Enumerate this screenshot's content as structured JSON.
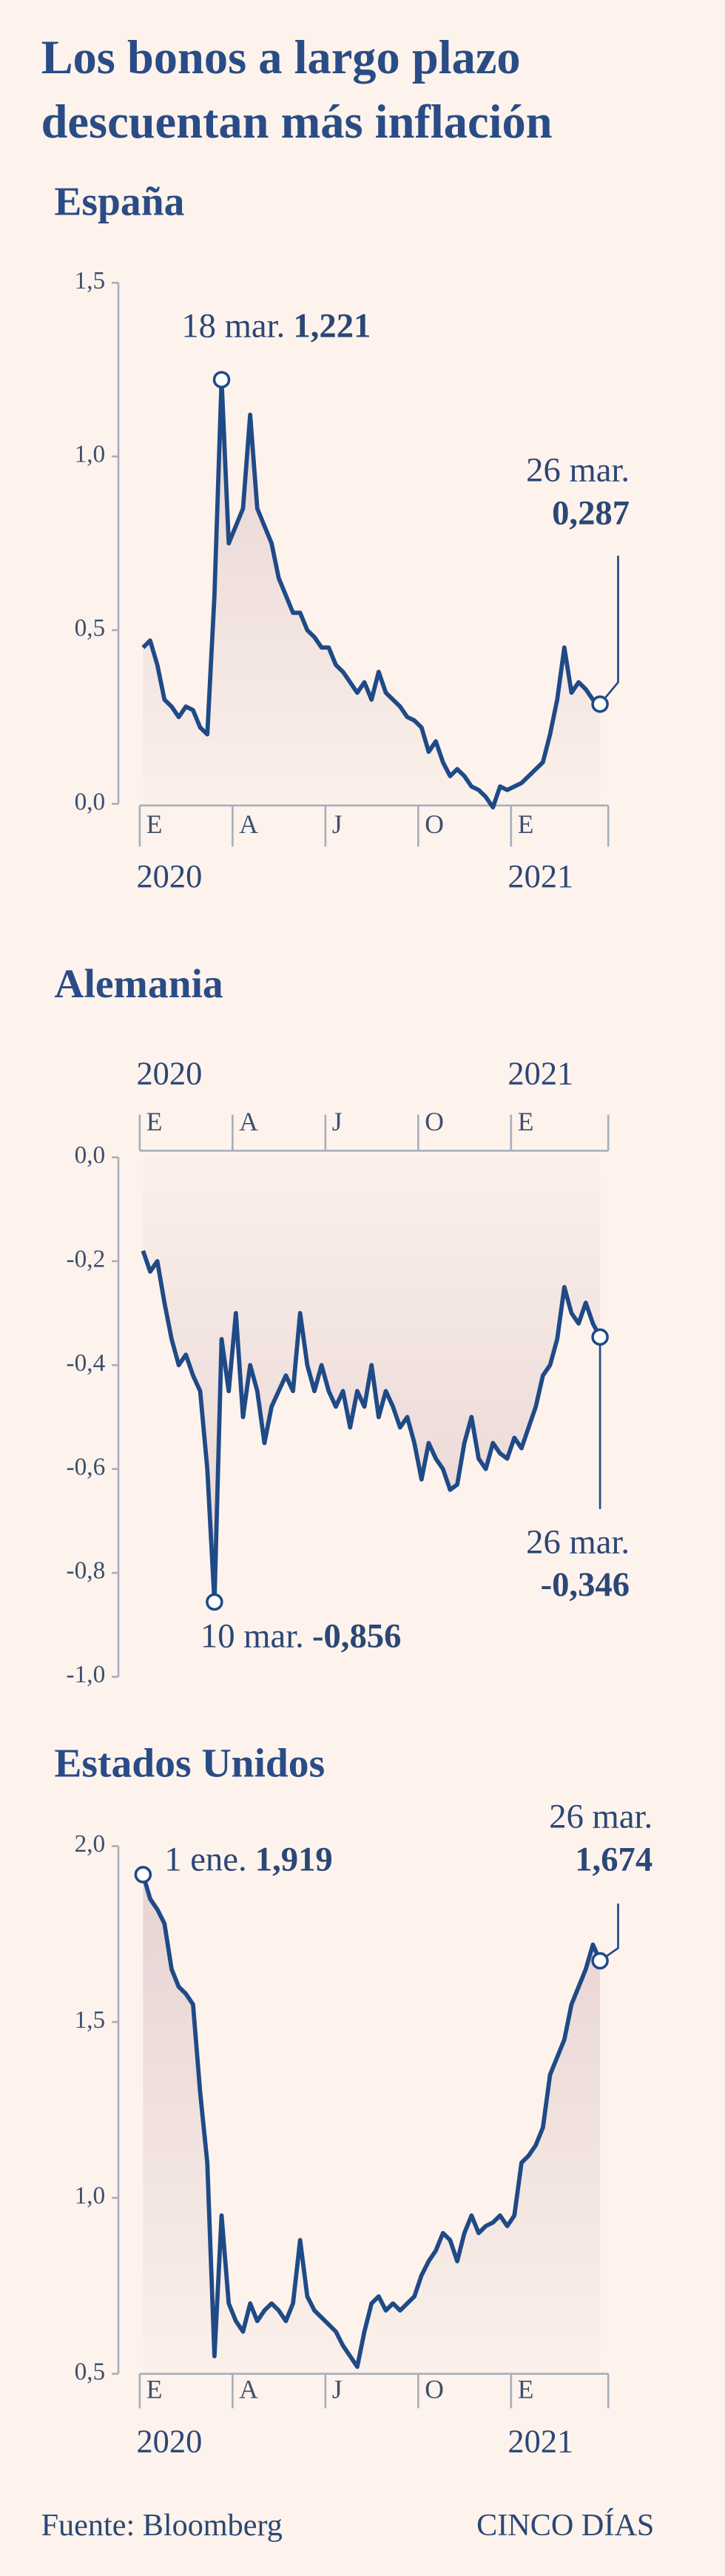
{
  "title": [
    "Los bonos a largo plazo",
    "descuentan más inflación"
  ],
  "source": "Fuente: Bloomberg",
  "brand": "CINCO DÍAS",
  "chart_data": [
    {
      "type": "line",
      "title": "España",
      "color": "#1f4a87",
      "area": true,
      "categories": [
        "E",
        null,
        null,
        null,
        null,
        null,
        null,
        null,
        null,
        null,
        null,
        null,
        null,
        "A",
        null,
        null,
        null,
        null,
        null,
        null,
        null,
        null,
        null,
        null,
        null,
        null,
        "J",
        null,
        null,
        null,
        null,
        null,
        null,
        null,
        null,
        null,
        null,
        null,
        null,
        "O",
        null,
        null,
        null,
        null,
        null,
        null,
        null,
        null,
        null,
        null,
        null,
        null,
        "E",
        null,
        null,
        null,
        null,
        null,
        null,
        null,
        null,
        null,
        null,
        null,
        null
      ],
      "year_labels": [
        "2020",
        null,
        null,
        null,
        null,
        null,
        null,
        null,
        null,
        null,
        null,
        null,
        null,
        null,
        null,
        null,
        null,
        null,
        null,
        null,
        null,
        null,
        null,
        null,
        null,
        null,
        null,
        null,
        null,
        null,
        null,
        null,
        null,
        null,
        null,
        null,
        null,
        null,
        null,
        null,
        null,
        null,
        null,
        null,
        null,
        null,
        null,
        null,
        null,
        null,
        null,
        null,
        "2021",
        null,
        null,
        null,
        null,
        null,
        null,
        null,
        null,
        null,
        null,
        null,
        null
      ],
      "values": [
        0.45,
        0.47,
        0.4,
        0.3,
        0.28,
        0.25,
        0.28,
        0.27,
        0.22,
        0.2,
        0.6,
        1.221,
        0.75,
        0.8,
        0.85,
        1.12,
        0.85,
        0.8,
        0.75,
        0.65,
        0.6,
        0.55,
        0.55,
        0.5,
        0.48,
        0.45,
        0.45,
        0.4,
        0.38,
        0.35,
        0.32,
        0.35,
        0.3,
        0.38,
        0.32,
        0.3,
        0.28,
        0.25,
        0.24,
        0.22,
        0.15,
        0.18,
        0.12,
        0.08,
        0.1,
        0.08,
        0.05,
        0.04,
        0.02,
        -0.01,
        0.05,
        0.04,
        0.05,
        0.06,
        0.08,
        0.1,
        0.12,
        0.2,
        0.3,
        0.45,
        0.32,
        0.35,
        0.33,
        0.3,
        0.287
      ],
      "date_labels": [
        null,
        null,
        null,
        null,
        null,
        null,
        null,
        null,
        null,
        null,
        null,
        "18 mar.",
        null,
        null,
        null,
        null,
        null,
        null,
        null,
        null,
        null,
        null,
        null,
        null,
        null,
        null,
        null,
        null,
        null,
        null,
        null,
        null,
        null,
        null,
        null,
        null,
        null,
        null,
        null,
        null,
        null,
        null,
        null,
        null,
        null,
        null,
        null,
        null,
        null,
        null,
        null,
        null,
        null,
        null,
        null,
        null,
        null,
        null,
        null,
        null,
        null,
        null,
        null,
        null,
        "26 mar."
      ],
      "value_labels": [
        null,
        null,
        null,
        null,
        null,
        null,
        null,
        null,
        null,
        null,
        null,
        "1,221",
        null,
        null,
        null,
        null,
        null,
        null,
        null,
        null,
        null,
        null,
        null,
        null,
        null,
        null,
        null,
        null,
        null,
        null,
        null,
        null,
        null,
        null,
        null,
        null,
        null,
        null,
        null,
        null,
        null,
        null,
        null,
        null,
        null,
        null,
        null,
        null,
        null,
        null,
        null,
        null,
        null,
        null,
        null,
        null,
        null,
        null,
        null,
        null,
        null,
        null,
        null,
        null,
        "0,287"
      ],
      "ylim": [
        0,
        1.5
      ],
      "yticks": [
        {
          "value": 0,
          "label": "0,0"
        },
        {
          "value": 0.5,
          "label": "0,5"
        },
        {
          "value": 1,
          "label": "1,0"
        },
        {
          "value": 1.5,
          "label": "1,5"
        }
      ]
    },
    {
      "type": "line",
      "title": "Alemania",
      "color": "#1f4a87",
      "area": true,
      "categories": [
        "E",
        null,
        null,
        null,
        null,
        null,
        null,
        null,
        null,
        null,
        null,
        null,
        null,
        "A",
        null,
        null,
        null,
        null,
        null,
        null,
        null,
        null,
        null,
        null,
        null,
        null,
        "J",
        null,
        null,
        null,
        null,
        null,
        null,
        null,
        null,
        null,
        null,
        null,
        null,
        "O",
        null,
        null,
        null,
        null,
        null,
        null,
        null,
        null,
        null,
        null,
        null,
        null,
        "E",
        null,
        null,
        null,
        null,
        null,
        null,
        null,
        null,
        null,
        null,
        null,
        null
      ],
      "year_labels": [
        "2020",
        null,
        null,
        null,
        null,
        null,
        null,
        null,
        null,
        null,
        null,
        null,
        null,
        null,
        null,
        null,
        null,
        null,
        null,
        null,
        null,
        null,
        null,
        null,
        null,
        null,
        null,
        null,
        null,
        null,
        null,
        null,
        null,
        null,
        null,
        null,
        null,
        null,
        null,
        null,
        null,
        null,
        null,
        null,
        null,
        null,
        null,
        null,
        null,
        null,
        null,
        null,
        "2021",
        null,
        null,
        null,
        null,
        null,
        null,
        null,
        null,
        null,
        null,
        null,
        null
      ],
      "values": [
        -0.18,
        -0.22,
        -0.2,
        -0.28,
        -0.35,
        -0.4,
        -0.38,
        -0.42,
        -0.45,
        -0.6,
        -0.856,
        -0.35,
        -0.45,
        -0.3,
        -0.5,
        -0.4,
        -0.45,
        -0.55,
        -0.48,
        -0.45,
        -0.42,
        -0.45,
        -0.3,
        -0.4,
        -0.45,
        -0.4,
        -0.45,
        -0.48,
        -0.45,
        -0.52,
        -0.45,
        -0.48,
        -0.4,
        -0.5,
        -0.45,
        -0.48,
        -0.52,
        -0.5,
        -0.55,
        -0.62,
        -0.55,
        -0.58,
        -0.6,
        -0.64,
        -0.63,
        -0.55,
        -0.5,
        -0.58,
        -0.6,
        -0.55,
        -0.57,
        -0.58,
        -0.54,
        -0.56,
        -0.52,
        -0.48,
        -0.42,
        -0.4,
        -0.35,
        -0.25,
        -0.3,
        -0.32,
        -0.28,
        -0.32,
        -0.346
      ],
      "date_labels": [
        null,
        null,
        null,
        null,
        null,
        null,
        null,
        null,
        null,
        null,
        "10 mar.",
        null,
        null,
        null,
        null,
        null,
        null,
        null,
        null,
        null,
        null,
        null,
        null,
        null,
        null,
        null,
        null,
        null,
        null,
        null,
        null,
        null,
        null,
        null,
        null,
        null,
        null,
        null,
        null,
        null,
        null,
        null,
        null,
        null,
        null,
        null,
        null,
        null,
        null,
        null,
        null,
        null,
        null,
        null,
        null,
        null,
        null,
        null,
        null,
        null,
        null,
        null,
        null,
        null,
        "26 mar."
      ],
      "value_labels": [
        null,
        null,
        null,
        null,
        null,
        null,
        null,
        null,
        null,
        null,
        "-0,856",
        null,
        null,
        null,
        null,
        null,
        null,
        null,
        null,
        null,
        null,
        null,
        null,
        null,
        null,
        null,
        null,
        null,
        null,
        null,
        null,
        null,
        null,
        null,
        null,
        null,
        null,
        null,
        null,
        null,
        null,
        null,
        null,
        null,
        null,
        null,
        null,
        null,
        null,
        null,
        null,
        null,
        null,
        null,
        null,
        null,
        null,
        null,
        null,
        null,
        null,
        null,
        null,
        null,
        "-0,346"
      ],
      "ylim": [
        -1,
        0
      ],
      "yticks": [
        {
          "value": 0,
          "label": "0,0"
        },
        {
          "value": -0.2,
          "label": "-0,2"
        },
        {
          "value": -0.4,
          "label": "-0,4"
        },
        {
          "value": -0.6,
          "label": "-0,6"
        },
        {
          "value": -0.8,
          "label": "-0,8"
        },
        {
          "value": -1,
          "label": "-1,0"
        }
      ]
    },
    {
      "type": "line",
      "title": "Estados Unidos",
      "color": "#1f4a87",
      "area": true,
      "categories": [
        "E",
        null,
        null,
        null,
        null,
        null,
        null,
        null,
        null,
        null,
        null,
        null,
        null,
        "A",
        null,
        null,
        null,
        null,
        null,
        null,
        null,
        null,
        null,
        null,
        null,
        null,
        "J",
        null,
        null,
        null,
        null,
        null,
        null,
        null,
        null,
        null,
        null,
        null,
        null,
        "O",
        null,
        null,
        null,
        null,
        null,
        null,
        null,
        null,
        null,
        null,
        null,
        null,
        "E",
        null,
        null,
        null,
        null,
        null,
        null,
        null,
        null,
        null,
        null,
        null,
        null
      ],
      "year_labels": [
        "2020",
        null,
        null,
        null,
        null,
        null,
        null,
        null,
        null,
        null,
        null,
        null,
        null,
        null,
        null,
        null,
        null,
        null,
        null,
        null,
        null,
        null,
        null,
        null,
        null,
        null,
        null,
        null,
        null,
        null,
        null,
        null,
        null,
        null,
        null,
        null,
        null,
        null,
        null,
        null,
        null,
        null,
        null,
        null,
        null,
        null,
        null,
        null,
        null,
        null,
        null,
        null,
        "2021",
        null,
        null,
        null,
        null,
        null,
        null,
        null,
        null,
        null,
        null,
        null,
        null
      ],
      "values": [
        1.919,
        1.85,
        1.82,
        1.78,
        1.65,
        1.6,
        1.58,
        1.55,
        1.3,
        1.1,
        0.55,
        0.95,
        0.7,
        0.65,
        0.62,
        0.7,
        0.65,
        0.68,
        0.7,
        0.68,
        0.65,
        0.7,
        0.88,
        0.72,
        0.68,
        0.66,
        0.64,
        0.62,
        0.58,
        0.55,
        0.52,
        0.62,
        0.7,
        0.72,
        0.68,
        0.7,
        0.68,
        0.7,
        0.72,
        0.78,
        0.82,
        0.85,
        0.9,
        0.88,
        0.82,
        0.9,
        0.95,
        0.9,
        0.92,
        0.93,
        0.95,
        0.92,
        0.95,
        1.1,
        1.12,
        1.15,
        1.2,
        1.35,
        1.4,
        1.45,
        1.55,
        1.6,
        1.65,
        1.72,
        1.674
      ],
      "date_labels": [
        "1 ene.",
        null,
        null,
        null,
        null,
        null,
        null,
        null,
        null,
        null,
        null,
        null,
        null,
        null,
        null,
        null,
        null,
        null,
        null,
        null,
        null,
        null,
        null,
        null,
        null,
        null,
        null,
        null,
        null,
        null,
        null,
        null,
        null,
        null,
        null,
        null,
        null,
        null,
        null,
        null,
        null,
        null,
        null,
        null,
        null,
        null,
        null,
        null,
        null,
        null,
        null,
        null,
        null,
        null,
        null,
        null,
        null,
        null,
        null,
        null,
        null,
        null,
        null,
        null,
        "26 mar."
      ],
      "value_labels": [
        "1,919",
        null,
        null,
        null,
        null,
        null,
        null,
        null,
        null,
        null,
        null,
        null,
        null,
        null,
        null,
        null,
        null,
        null,
        null,
        null,
        null,
        null,
        null,
        null,
        null,
        null,
        null,
        null,
        null,
        null,
        null,
        null,
        null,
        null,
        null,
        null,
        null,
        null,
        null,
        null,
        null,
        null,
        null,
        null,
        null,
        null,
        null,
        null,
        null,
        null,
        null,
        null,
        null,
        null,
        null,
        null,
        null,
        null,
        null,
        null,
        null,
        null,
        null,
        null,
        "1,674"
      ],
      "ylim": [
        0.5,
        2
      ],
      "yticks": [
        {
          "value": 0.5,
          "label": "0,5"
        },
        {
          "value": 1,
          "label": "1,0"
        },
        {
          "value": 1.5,
          "label": "1,5"
        },
        {
          "value": 2,
          "label": "2,0"
        }
      ]
    }
  ]
}
